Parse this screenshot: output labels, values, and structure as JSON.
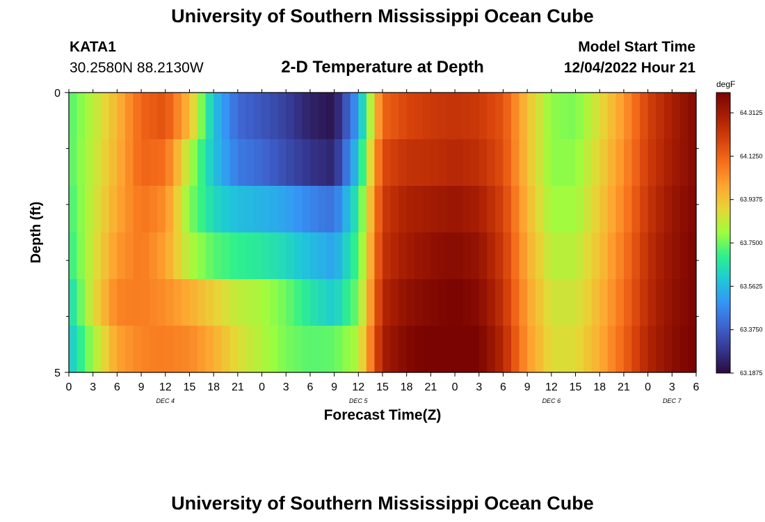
{
  "header": {
    "title": "University of Southern Mississippi Ocean Cube",
    "station_name": "KATA1",
    "station_coords": "30.2580N  88.2130W",
    "subtitle": "2-D Temperature at Depth",
    "model_start_label": "Model Start Time",
    "model_start_time": "12/04/2022 Hour 21"
  },
  "footer": {
    "title": "University of Southern Mississippi Ocean Cube"
  },
  "chart_data": {
    "type": "heatmap",
    "title": "2-D Temperature at Depth",
    "xlabel": "Forecast Time(Z)",
    "ylabel": "Depth (ft)",
    "ylim": [
      0,
      5
    ],
    "y_ticks": [
      "0",
      "5"
    ],
    "x_tick_labels": [
      "0",
      "3",
      "6",
      "9",
      "12",
      "15",
      "18",
      "21",
      "0",
      "3",
      "6",
      "9",
      "12",
      "15",
      "18",
      "21",
      "0",
      "3",
      "6",
      "9",
      "12",
      "15",
      "18",
      "21",
      "0",
      "3",
      "6"
    ],
    "date_labels": [
      {
        "label": "DEC 4",
        "at_tick": 4
      },
      {
        "label": "DEC 5",
        "at_tick": 12
      },
      {
        "label": "DEC 6",
        "at_tick": 20
      },
      {
        "label": "DEC 7",
        "at_tick": 25
      }
    ],
    "colorbar": {
      "unit": "degF",
      "min": 63.1875,
      "max": 64.4,
      "ticks": [
        "63.1875",
        "63.3750",
        "63.5625",
        "63.7500",
        "63.9375",
        "64.1250",
        "64.3125"
      ],
      "colors": [
        "#2a0b3d",
        "#35378f",
        "#3e63cf",
        "#3594f6",
        "#1ec8d8",
        "#2ef08c",
        "#9dfd3e",
        "#e7d636",
        "#fea531",
        "#f66f1b",
        "#d6410b",
        "#a81e03",
        "#7a0402"
      ]
    },
    "depth_rows": [
      "0.0-0.83",
      "0.83-1.67",
      "1.67-2.5",
      "2.5-3.33",
      "3.33-4.17",
      "4.17-5.0"
    ],
    "time_keys_hours": [
      0,
      3,
      6,
      9,
      12,
      15,
      18,
      21,
      24,
      27,
      30,
      33,
      36,
      39,
      42,
      45,
      48,
      51,
      54,
      57,
      60,
      63,
      66,
      69,
      72,
      75,
      78
    ],
    "values_by_depth": [
      [
        63.72,
        63.83,
        63.96,
        64.12,
        64.16,
        63.95,
        63.58,
        63.4,
        63.36,
        63.31,
        63.24,
        63.21,
        63.52,
        64.12,
        64.19,
        64.22,
        64.24,
        64.22,
        64.16,
        63.94,
        63.78,
        63.76,
        63.88,
        64.02,
        64.2,
        64.3,
        64.38
      ],
      [
        63.72,
        63.84,
        63.97,
        64.12,
        64.1,
        63.82,
        63.58,
        63.44,
        63.4,
        63.34,
        63.28,
        63.25,
        63.6,
        64.18,
        64.24,
        64.25,
        64.27,
        64.25,
        64.17,
        63.94,
        63.78,
        63.78,
        63.9,
        64.04,
        64.21,
        64.31,
        64.38
      ],
      [
        63.7,
        63.85,
        63.99,
        64.09,
        64.04,
        63.77,
        63.63,
        63.57,
        63.55,
        63.52,
        63.46,
        63.42,
        63.68,
        64.22,
        64.29,
        64.31,
        64.33,
        64.3,
        64.2,
        63.96,
        63.8,
        63.8,
        63.92,
        64.06,
        64.23,
        64.33,
        64.39
      ],
      [
        63.68,
        63.86,
        64.02,
        64.08,
        64.0,
        63.82,
        63.73,
        63.69,
        63.67,
        63.63,
        63.57,
        63.52,
        63.72,
        64.24,
        64.31,
        64.35,
        64.37,
        64.34,
        64.22,
        63.98,
        63.83,
        63.83,
        63.94,
        64.08,
        64.25,
        64.34,
        64.4
      ],
      [
        63.62,
        63.88,
        64.06,
        64.07,
        64.04,
        63.98,
        63.91,
        63.84,
        63.81,
        63.75,
        63.66,
        63.6,
        63.76,
        64.27,
        64.35,
        64.38,
        64.4,
        64.37,
        64.24,
        64.0,
        63.86,
        63.86,
        63.96,
        64.1,
        64.26,
        64.35,
        64.4
      ],
      [
        63.58,
        63.8,
        64.0,
        64.06,
        64.07,
        64.05,
        63.98,
        63.88,
        63.82,
        63.76,
        63.73,
        63.74,
        63.82,
        64.3,
        64.38,
        64.41,
        64.43,
        64.4,
        64.27,
        64.02,
        63.88,
        63.88,
        63.98,
        64.12,
        64.28,
        64.36,
        64.41
      ]
    ]
  }
}
